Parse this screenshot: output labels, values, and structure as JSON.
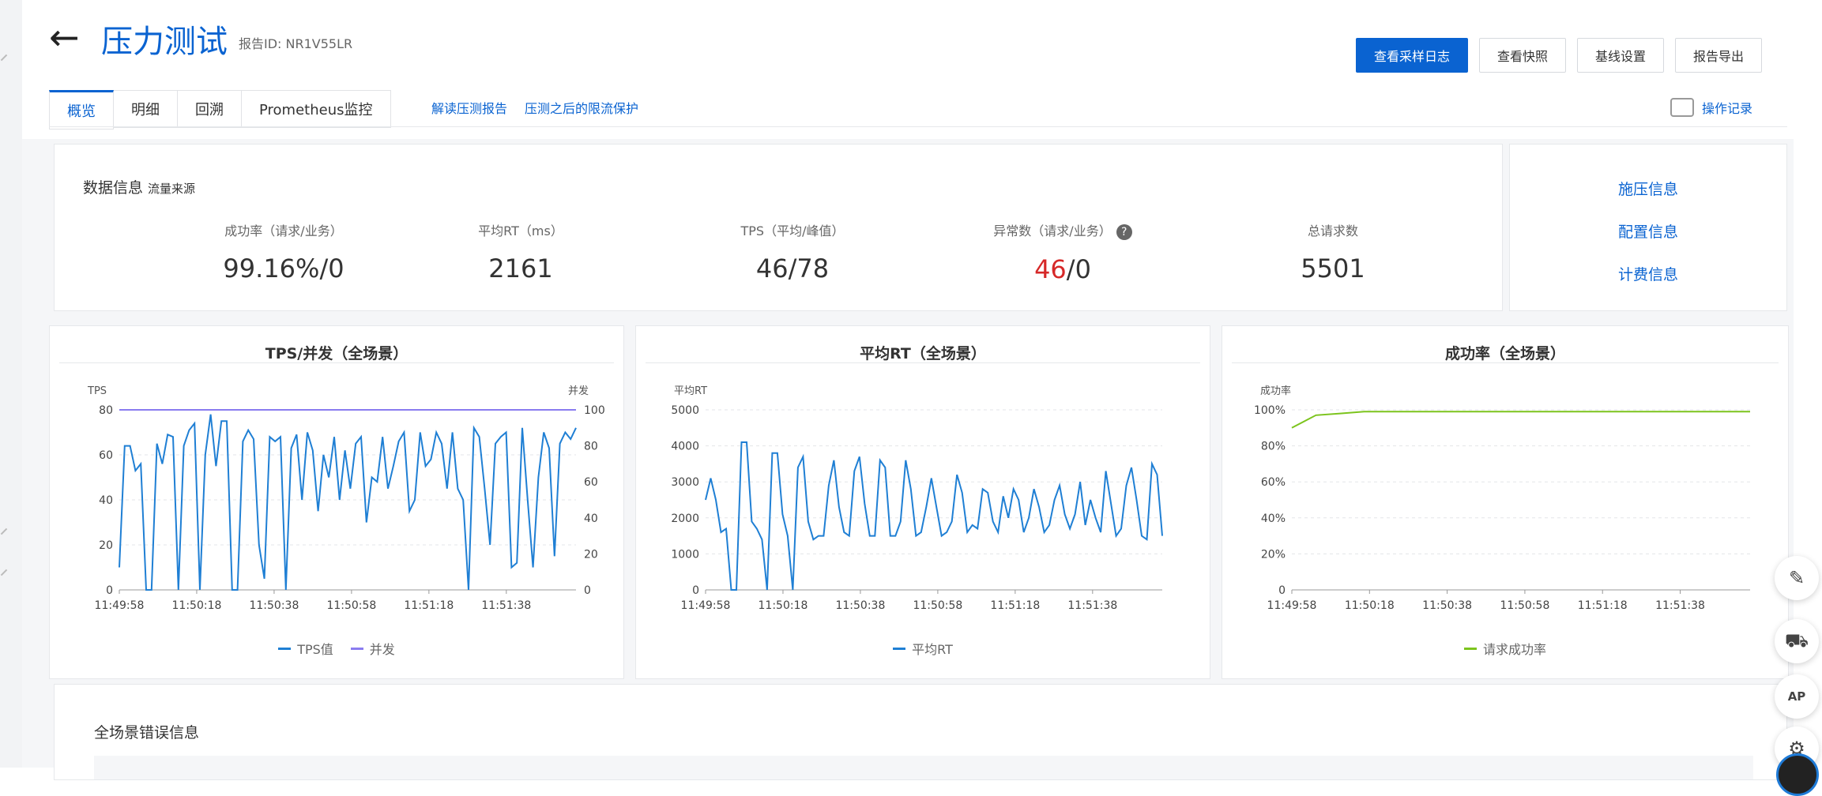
{
  "header": {
    "title": "压力测试",
    "report_id": "报告ID:  NR1V55LR",
    "buttons": [
      "查看采样日志",
      "查看快照",
      "基线设置",
      "报告导出"
    ]
  },
  "tabs": [
    "概览",
    "明细",
    "回溯",
    "Prometheus监控"
  ],
  "tab_links": [
    "解读压测报告",
    "压测之后的限流保护"
  ],
  "op_record": "操作记录",
  "data_info": {
    "title": "数据信息",
    "source": "流量来源",
    "metrics": [
      {
        "label": "成功率（请求/业务）",
        "value": "99.16%/0"
      },
      {
        "label": "平均RT（ms）",
        "value": "2161"
      },
      {
        "label": "TPS（平均/峰值）",
        "value": "46/78"
      },
      {
        "label": "异常数（请求/业务）",
        "value_red": "46",
        "value_rest": "/0",
        "help": "?"
      },
      {
        "label": "总请求数",
        "value": "5501"
      }
    ],
    "side_links": [
      "施压信息",
      "配置信息",
      "计费信息"
    ]
  },
  "error_section": {
    "title": "全场景错误信息"
  },
  "colors": {
    "primary": "#0a63d1",
    "tps": "#1f7fd4",
    "concurrency": "#8a7cf0",
    "success": "#7cc41d",
    "error": "#d62828"
  },
  "icons": [
    "back-arrow-icon",
    "hand-pointer-icon",
    "help-icon",
    "edit-icon",
    "cart-icon",
    "api-icon",
    "settings-icon"
  ],
  "chart_data": [
    {
      "type": "line",
      "title": "TPS/并发（全场景）",
      "ylabel": "TPS",
      "y2label": "并发",
      "ylim": [
        0,
        80
      ],
      "y2lim": [
        0,
        100
      ],
      "yticks": [
        0,
        20,
        40,
        60,
        80
      ],
      "y2ticks": [
        0,
        20,
        40,
        60,
        80,
        100
      ],
      "xticks": [
        "11:49:58",
        "11:50:18",
        "11:50:38",
        "11:50:58",
        "11:51:18",
        "11:51:38"
      ],
      "series": [
        {
          "name": "TPS值",
          "axis": "left",
          "values": [
            10,
            64,
            64,
            53,
            56,
            0,
            0,
            65,
            56,
            69,
            68,
            0,
            64,
            71,
            74,
            0,
            60,
            78,
            55,
            75,
            75,
            0,
            0,
            66,
            71,
            67,
            20,
            5,
            68,
            66,
            68,
            0,
            63,
            69,
            40,
            70,
            62,
            35,
            60,
            50,
            68,
            40,
            62,
            45,
            65,
            68,
            30,
            50,
            48,
            68,
            45,
            55,
            66,
            70,
            35,
            40,
            70,
            55,
            58,
            70,
            65,
            45,
            70,
            45,
            40,
            0,
            72,
            68,
            45,
            20,
            65,
            68,
            70,
            10,
            12,
            72,
            40,
            10,
            50,
            70,
            63,
            15,
            65,
            70,
            67,
            72
          ]
        },
        {
          "name": "并发",
          "axis": "right",
          "values": [
            100,
            100,
            100,
            100,
            100,
            100,
            100,
            100,
            100,
            100,
            100,
            100
          ]
        }
      ]
    },
    {
      "type": "line",
      "title": "平均RT（全场景）",
      "ylabel": "平均RT",
      "ylim": [
        0,
        5000
      ],
      "yticks": [
        0,
        1000,
        2000,
        3000,
        4000,
        5000
      ],
      "xticks": [
        "11:49:58",
        "11:50:18",
        "11:50:38",
        "11:50:58",
        "11:51:18",
        "11:51:38"
      ],
      "series": [
        {
          "name": "平均RT",
          "values": [
            2500,
            3100,
            2500,
            1600,
            1700,
            0,
            0,
            4100,
            4100,
            1900,
            1700,
            1400,
            0,
            3800,
            3800,
            2100,
            1500,
            0,
            3400,
            3700,
            1900,
            1400,
            1500,
            1500,
            2900,
            3600,
            2300,
            1600,
            1500,
            3300,
            3700,
            2400,
            1500,
            1500,
            3600,
            3400,
            1500,
            1500,
            1900,
            3600,
            2800,
            1500,
            1600,
            2300,
            3100,
            2300,
            1500,
            1600,
            1900,
            3200,
            2700,
            1600,
            1800,
            1700,
            2800,
            2700,
            1900,
            1600,
            2600,
            2000,
            2800,
            2500,
            1600,
            2000,
            2800,
            2300,
            1600,
            1800,
            2500,
            2900,
            2100,
            1700,
            2100,
            3000,
            1800,
            2500,
            2000,
            1600,
            3300,
            2400,
            1500,
            1700,
            2900,
            3400,
            2500,
            1500,
            1400,
            3500,
            3200,
            1500
          ]
        }
      ]
    },
    {
      "type": "line",
      "title": "成功率（全场景）",
      "ylabel": "成功率",
      "ylim": [
        0,
        100
      ],
      "yticks": [
        "0",
        "20%",
        "40%",
        "60%",
        "80%",
        "100%"
      ],
      "xticks": [
        "11:49:58",
        "11:50:18",
        "11:50:38",
        "11:50:58",
        "11:51:18",
        "11:51:38"
      ],
      "series": [
        {
          "name": "请求成功率",
          "values": [
            90,
            97,
            98,
            99,
            99,
            99,
            99,
            99,
            99,
            99,
            99,
            99,
            99,
            99,
            99,
            99,
            99,
            99,
            99,
            99
          ]
        }
      ]
    }
  ]
}
